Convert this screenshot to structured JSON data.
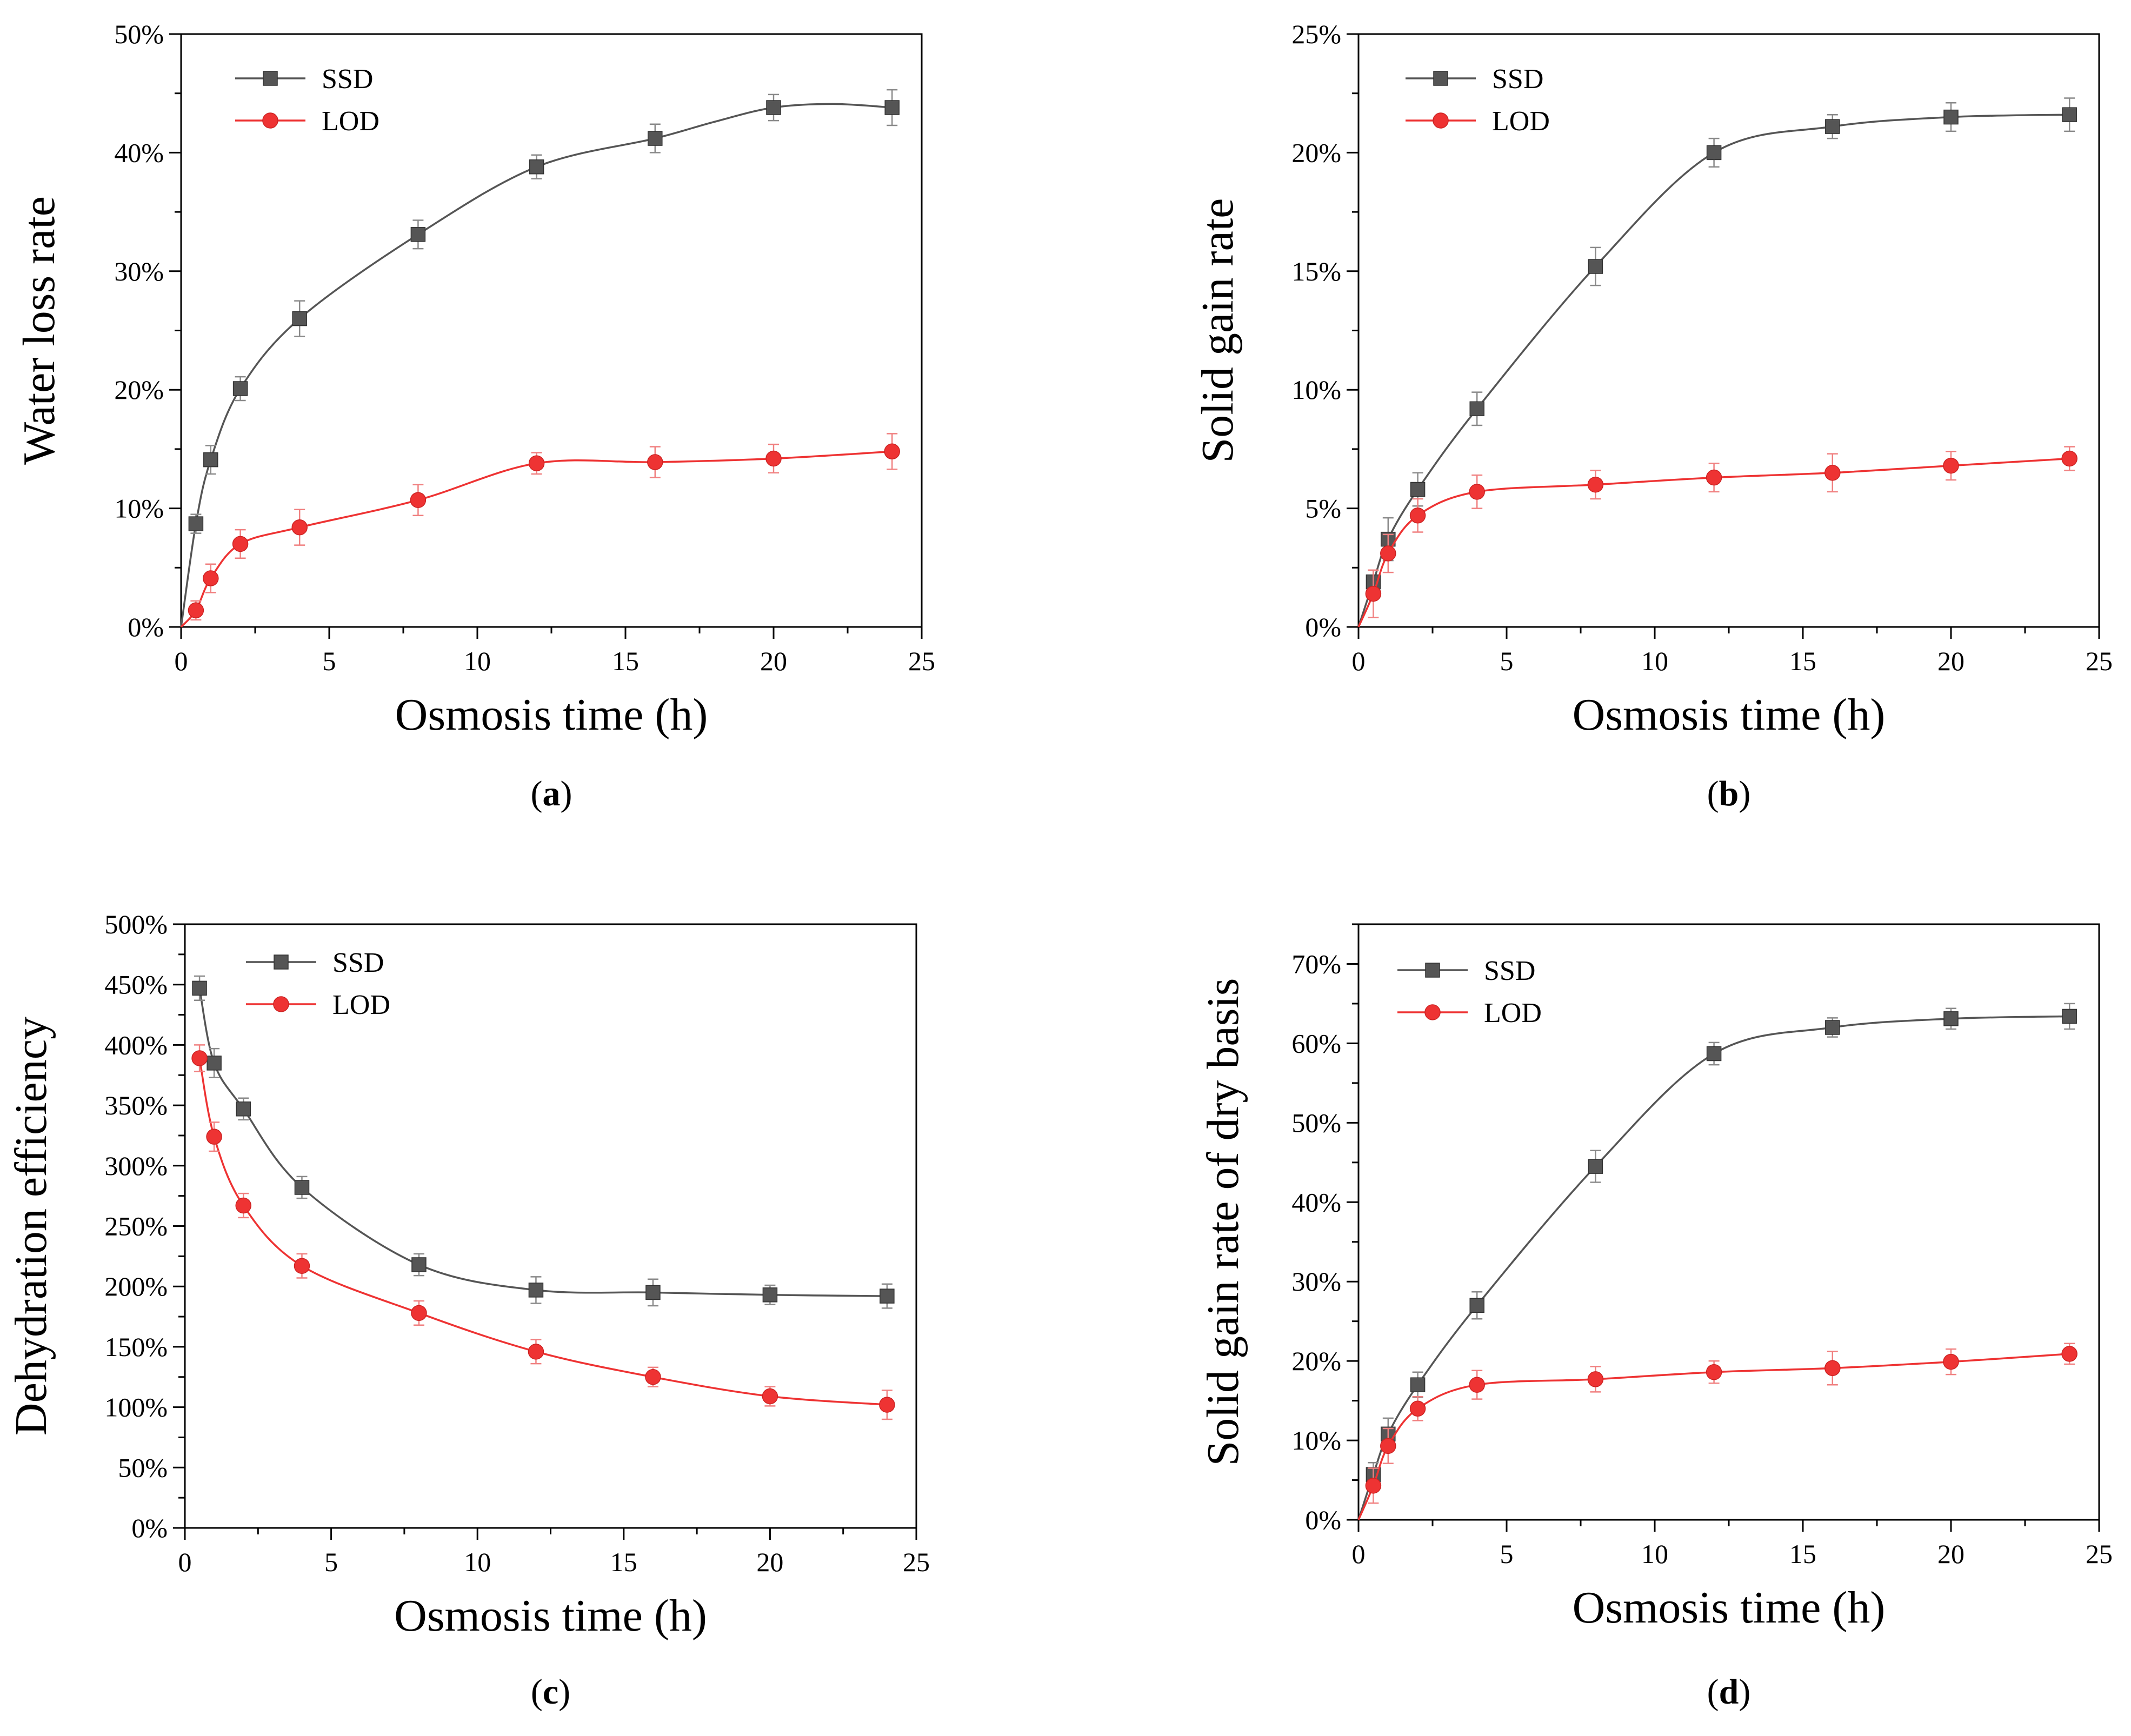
{
  "chart_data": [
    {
      "panel": "a",
      "panel_label_open": "(",
      "panel_label_letter": "a",
      "panel_label_close": ")",
      "type": "line",
      "xlabel": "Osmosis time (h)",
      "ylabel": "Water loss rate",
      "xlim": [
        0,
        25
      ],
      "ylim": [
        0,
        50
      ],
      "xticks": [
        0,
        5,
        10,
        15,
        20,
        25
      ],
      "yticks": [
        0,
        10,
        20,
        30,
        40,
        50
      ],
      "ytick_labels": [
        "0%",
        "10%",
        "20%",
        "30%",
        "40%",
        "50%"
      ],
      "legend": [
        "SSD",
        "LOD"
      ],
      "series": [
        {
          "name": "SSD",
          "color": "#555555",
          "marker": "square",
          "x": [
            0.5,
            1,
            2,
            4,
            8,
            12,
            16,
            20,
            24
          ],
          "values": [
            8.7,
            14.1,
            20.1,
            26.0,
            33.1,
            38.8,
            41.2,
            43.8,
            43.8
          ],
          "errors": [
            0.8,
            1.2,
            1.0,
            1.5,
            1.2,
            1.0,
            1.2,
            1.1,
            1.5
          ],
          "curve": [
            [
              0,
              0
            ],
            [
              0.5,
              8.7
            ],
            [
              1,
              14.1
            ],
            [
              2,
              20.1
            ],
            [
              4,
              26.0
            ],
            [
              8,
              33.1
            ],
            [
              12,
              38.8
            ],
            [
              16,
              41.2
            ],
            [
              18,
              42.6
            ],
            [
              20,
              43.8
            ],
            [
              22,
              44.1
            ],
            [
              24,
              43.8
            ]
          ]
        },
        {
          "name": "LOD",
          "color": "#ee3333",
          "marker": "circle",
          "x": [
            0.5,
            1,
            2,
            4,
            8,
            12,
            16,
            20,
            24
          ],
          "values": [
            1.4,
            4.1,
            7.0,
            8.4,
            10.7,
            13.8,
            13.9,
            14.2,
            14.8
          ],
          "errors": [
            0.8,
            1.2,
            1.2,
            1.5,
            1.3,
            0.9,
            1.3,
            1.2,
            1.5
          ],
          "curve": [
            [
              0,
              0
            ],
            [
              0.5,
              1.4
            ],
            [
              1,
              4.1
            ],
            [
              2,
              7.0
            ],
            [
              4,
              8.4
            ],
            [
              8,
              10.7
            ],
            [
              12,
              13.8
            ],
            [
              16,
              13.9
            ],
            [
              20,
              14.2
            ],
            [
              24,
              14.8
            ]
          ]
        }
      ]
    },
    {
      "panel": "b",
      "panel_label_open": "(",
      "panel_label_letter": "b",
      "panel_label_close": ")",
      "type": "line",
      "xlabel": "Osmosis time (h)",
      "ylabel": "Solid gain rate",
      "xlim": [
        0,
        25
      ],
      "ylim": [
        0,
        25
      ],
      "xticks": [
        0,
        5,
        10,
        15,
        20,
        25
      ],
      "yticks": [
        0,
        5,
        10,
        15,
        20,
        25
      ],
      "ytick_labels": [
        "0%",
        "5%",
        "10%",
        "15%",
        "20%",
        "25%"
      ],
      "legend": [
        "SSD",
        "LOD"
      ],
      "series": [
        {
          "name": "SSD",
          "color": "#555555",
          "marker": "square",
          "x": [
            0.5,
            1,
            2,
            4,
            8,
            12,
            16,
            20,
            24
          ],
          "values": [
            1.9,
            3.7,
            5.8,
            9.2,
            15.2,
            20.0,
            21.1,
            21.5,
            21.6
          ],
          "errors": [
            0.5,
            0.9,
            0.7,
            0.7,
            0.8,
            0.6,
            0.5,
            0.6,
            0.7
          ],
          "curve": [
            [
              0,
              0
            ],
            [
              0.5,
              1.9
            ],
            [
              1,
              3.7
            ],
            [
              2,
              5.8
            ],
            [
              4,
              9.2
            ],
            [
              8,
              15.2
            ],
            [
              12,
              20.0
            ],
            [
              16,
              21.1
            ],
            [
              20,
              21.5
            ],
            [
              24,
              21.6
            ]
          ]
        },
        {
          "name": "LOD",
          "color": "#ee3333",
          "marker": "circle",
          "x": [
            0.5,
            1,
            2,
            4,
            8,
            12,
            16,
            20,
            24
          ],
          "values": [
            1.4,
            3.1,
            4.7,
            5.7,
            6.0,
            6.3,
            6.5,
            6.8,
            7.1
          ],
          "errors": [
            1.0,
            0.8,
            0.7,
            0.7,
            0.6,
            0.6,
            0.8,
            0.6,
            0.5
          ],
          "curve": [
            [
              0,
              0
            ],
            [
              0.5,
              1.4
            ],
            [
              1,
              3.1
            ],
            [
              2,
              4.7
            ],
            [
              4,
              5.7
            ],
            [
              8,
              6.0
            ],
            [
              12,
              6.3
            ],
            [
              16,
              6.5
            ],
            [
              20,
              6.8
            ],
            [
              24,
              7.1
            ]
          ]
        }
      ]
    },
    {
      "panel": "c",
      "panel_label_open": "(",
      "panel_label_letter": "c",
      "panel_label_close": ")",
      "type": "line",
      "xlabel": "Osmosis time (h)",
      "ylabel": "Dehydration efficiency",
      "xlim": [
        0,
        25
      ],
      "ylim": [
        0,
        500
      ],
      "xticks": [
        0,
        5,
        10,
        15,
        20,
        25
      ],
      "yticks": [
        0,
        50,
        100,
        150,
        200,
        250,
        300,
        350,
        400,
        450,
        500
      ],
      "ytick_labels": [
        "0%",
        "50%",
        "100%",
        "150%",
        "200%",
        "250%",
        "300%",
        "350%",
        "400%",
        "450%",
        "500%"
      ],
      "legend": [
        "SSD",
        "LOD"
      ],
      "series": [
        {
          "name": "SSD",
          "color": "#555555",
          "marker": "square",
          "x": [
            0.5,
            1,
            2,
            4,
            8,
            12,
            16,
            20,
            24
          ],
          "values": [
            447,
            385,
            347,
            282,
            218,
            197,
            195,
            193,
            192
          ],
          "errors": [
            10,
            12,
            9,
            9,
            9,
            11,
            11,
            8,
            10
          ],
          "curve": [
            [
              0.5,
              447
            ],
            [
              1,
              385
            ],
            [
              2,
              347
            ],
            [
              4,
              282
            ],
            [
              8,
              218
            ],
            [
              12,
              197
            ],
            [
              16,
              195
            ],
            [
              20,
              193
            ],
            [
              24,
              192
            ]
          ]
        },
        {
          "name": "LOD",
          "color": "#ee3333",
          "marker": "circle",
          "x": [
            0.5,
            1,
            2,
            4,
            8,
            12,
            16,
            20,
            24
          ],
          "values": [
            389,
            324,
            267,
            217,
            178,
            146,
            125,
            109,
            102
          ],
          "errors": [
            11,
            12,
            10,
            10,
            10,
            10,
            8,
            8,
            12
          ],
          "curve": [
            [
              0.5,
              389
            ],
            [
              1,
              324
            ],
            [
              2,
              267
            ],
            [
              4,
              217
            ],
            [
              8,
              178
            ],
            [
              12,
              146
            ],
            [
              16,
              125
            ],
            [
              20,
              109
            ],
            [
              24,
              102
            ]
          ]
        }
      ]
    },
    {
      "panel": "d",
      "panel_label_open": "(",
      "panel_label_letter": "d",
      "panel_label_close": ")",
      "type": "line",
      "xlabel": "Osmosis time (h)",
      "ylabel": "Solid gain rate of dry basis",
      "xlim": [
        0,
        25
      ],
      "ylim": [
        0,
        75
      ],
      "xticks": [
        0,
        5,
        10,
        15,
        20,
        25
      ],
      "yticks": [
        0,
        10,
        20,
        30,
        40,
        50,
        60,
        70
      ],
      "ytick_labels": [
        "0%",
        "10%",
        "20%",
        "30%",
        "40%",
        "50%",
        "60%",
        "70%"
      ],
      "legend": [
        "SSD",
        "LOD"
      ],
      "series": [
        {
          "name": "SSD",
          "color": "#555555",
          "marker": "square",
          "x": [
            0.5,
            1,
            2,
            4,
            8,
            12,
            16,
            20,
            24
          ],
          "values": [
            5.7,
            10.8,
            17.0,
            27.0,
            44.5,
            58.7,
            62.0,
            63.1,
            63.4
          ],
          "errors": [
            1.5,
            2.0,
            1.6,
            1.7,
            2.0,
            1.4,
            1.2,
            1.3,
            1.6
          ],
          "curve": [
            [
              0,
              0
            ],
            [
              0.5,
              5.7
            ],
            [
              1,
              10.8
            ],
            [
              2,
              17.0
            ],
            [
              4,
              27.0
            ],
            [
              8,
              44.5
            ],
            [
              12,
              58.7
            ],
            [
              16,
              62.0
            ],
            [
              20,
              63.1
            ],
            [
              24,
              63.4
            ]
          ]
        },
        {
          "name": "LOD",
          "color": "#ee3333",
          "marker": "circle",
          "x": [
            0.5,
            1,
            2,
            4,
            8,
            12,
            16,
            20,
            24
          ],
          "values": [
            4.3,
            9.3,
            14.0,
            17.0,
            17.7,
            18.6,
            19.1,
            19.9,
            20.9
          ],
          "errors": [
            2.2,
            2.2,
            1.5,
            1.8,
            1.6,
            1.4,
            2.1,
            1.6,
            1.3
          ],
          "curve": [
            [
              0,
              0
            ],
            [
              0.5,
              4.3
            ],
            [
              1,
              9.3
            ],
            [
              2,
              14.0
            ],
            [
              4,
              17.0
            ],
            [
              8,
              17.7
            ],
            [
              12,
              18.6
            ],
            [
              16,
              19.1
            ],
            [
              20,
              19.9
            ],
            [
              24,
              20.9
            ]
          ]
        }
      ]
    }
  ]
}
